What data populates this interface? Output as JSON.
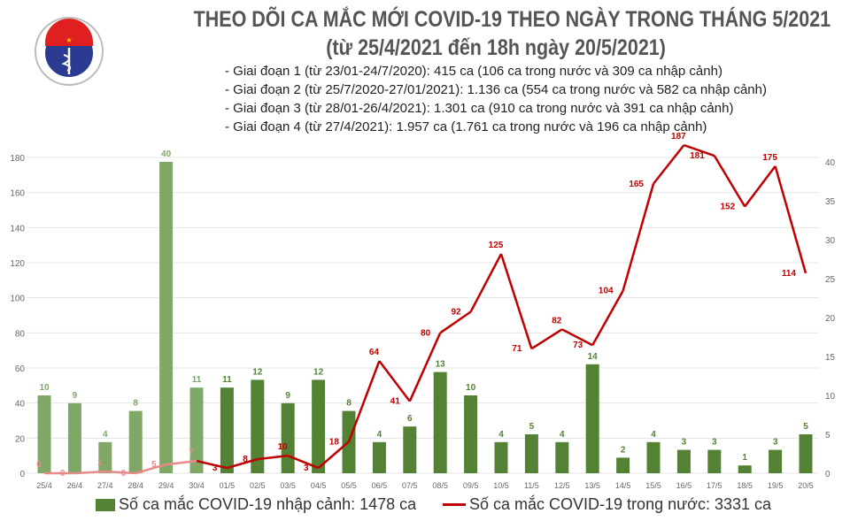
{
  "header": {
    "title": "THEO DÕI CA MẮC MỚI COVID-19 THEO NGÀY TRONG THÁNG 5/2021",
    "subtitle": "(từ 25/4/2021 đến 18h ngày 20/5/2021)",
    "notes": [
      "- Giai đoạn 1 (từ 23/01-24/7/2020): 415 ca (106 ca trong nước và 309 ca nhập cảnh)",
      "- Giai đoạn 2 (từ 25/7/2020-27/01/2021): 1.136 ca (554 ca trong nước và 582 ca nhập cảnh)",
      "- Giai đoạn 3 (từ 28/01-26/4/2021): 1.301 ca (910 ca trong nước và 391 ca nhập cảnh)",
      "- Giai đoạn 4 (từ 27/4/2021): 1.957 ca (1.761 ca trong nước và 196 ca nhập cảnh)"
    ],
    "logo_text": "BỘ Y TẾ MINISTRY OF HEALTH"
  },
  "chart_data": {
    "type": "bar+line",
    "categories": [
      "25/4",
      "26/4",
      "27/4",
      "28/4",
      "29/4",
      "30/4",
      "01/5",
      "02/5",
      "03/5",
      "04/5",
      "05/5",
      "06/5",
      "07/5",
      "08/5",
      "09/5",
      "10/5",
      "11/5",
      "12/5",
      "13/5",
      "14/5",
      "15/5",
      "16/5",
      "17/5",
      "18/5",
      "19/5",
      "20/5"
    ],
    "series": [
      {
        "name": "Số ca mắc COVID-19 nhập cảnh: 1478 ca",
        "type": "bar",
        "axis": "right",
        "color": "#548235",
        "light_color": "#7fa866",
        "values": [
          10,
          9,
          4,
          8,
          40,
          11,
          11,
          12,
          9,
          12,
          8,
          4,
          6,
          13,
          10,
          4,
          5,
          4,
          14,
          2,
          4,
          3,
          3,
          1,
          3,
          5
        ]
      },
      {
        "name": "Số ca mắc COVID-19 trong nước: 3331 ca",
        "type": "line",
        "axis": "left",
        "color": "#c00000",
        "light_color": "#e88a8a",
        "values": [
          0,
          0,
          1,
          0,
          5,
          7,
          3,
          8,
          10,
          3,
          18,
          64,
          41,
          80,
          92,
          125,
          71,
          82,
          73,
          104,
          165,
          187,
          181,
          152,
          175,
          114
        ]
      }
    ],
    "left_axis": {
      "range": [
        0,
        180
      ],
      "ticks": [
        0,
        20,
        40,
        60,
        80,
        100,
        120,
        140,
        160,
        180
      ]
    },
    "right_axis": {
      "range": [
        0,
        40
      ],
      "ticks": [
        0,
        5,
        10,
        15,
        20,
        25,
        30,
        35,
        40
      ]
    },
    "grid": true,
    "legend": "bottom"
  }
}
